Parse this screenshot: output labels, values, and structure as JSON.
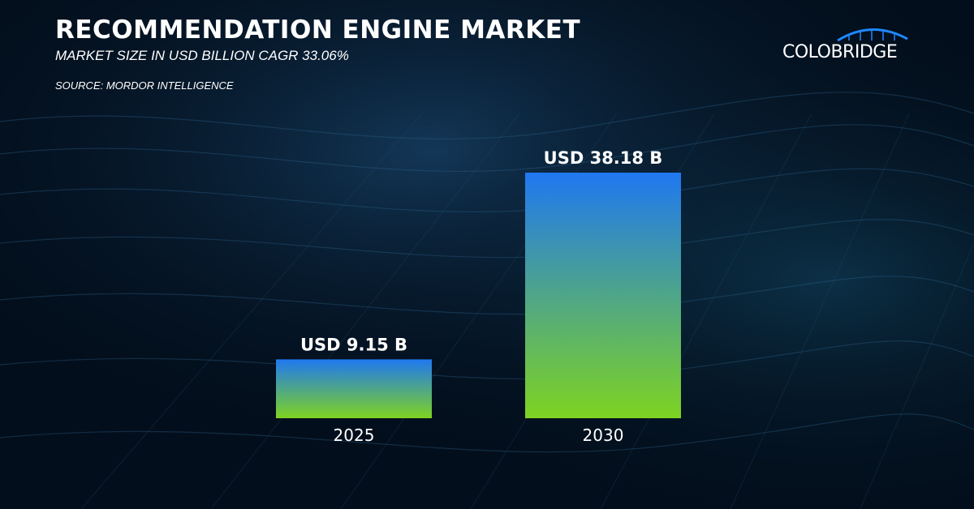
{
  "header": {
    "title": "RECOMMENDATION ENGINE MARKET",
    "subtitle": "MARKET SIZE IN USD BILLION CAGR 33.06%",
    "source": "SOURCE: MORDOR INTELLIGENCE"
  },
  "logo": {
    "text": "COLOBRIDGE",
    "icon": "bridge-arc-icon"
  },
  "colors": {
    "bar_top": "#1f78f0",
    "bar_bottom": "#7ed321",
    "text": "#ffffff",
    "background": "#04111f"
  },
  "chart_data": {
    "type": "bar",
    "title": "RECOMMENDATION ENGINE MARKET",
    "subtitle": "MARKET SIZE IN USD BILLION CAGR 33.06%",
    "categories": [
      "2025",
      "2030"
    ],
    "values": [
      9.15,
      38.18
    ],
    "data_labels": [
      "USD 9.15 B",
      "USD 38.18 B"
    ],
    "xlabel": "",
    "ylabel": "",
    "ylim": [
      0,
      38.18
    ],
    "grid": false,
    "legend": "none"
  }
}
